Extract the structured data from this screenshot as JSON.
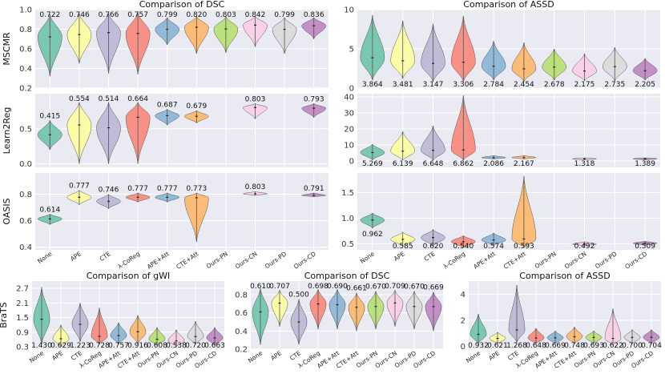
{
  "colors": [
    "#66c2a5",
    "#ffff99",
    "#b7b4d3",
    "#fb8072",
    "#80b1d3",
    "#fdb462",
    "#b3de69",
    "#fccde5",
    "#d9d9d9",
    "#bc80bd"
  ],
  "chart_data": [
    {
      "type": "violin",
      "panel": "top-left-1",
      "title": "Comparison of DSC",
      "ylabel": "MSCMR",
      "ylim": [
        0.2,
        1.0
      ],
      "yticks": [
        0.2,
        0.4,
        0.6,
        0.8,
        1.0
      ],
      "ytick_labels": [
        "0.2",
        "0.4",
        "0.6",
        "0.8",
        "1.0"
      ],
      "categories": [
        "None",
        "APE",
        "CTE",
        "λ-CoReg",
        "APE+Att",
        "CTE+Att",
        "Ours-PN",
        "Ours-CN",
        "Ours-PD",
        "Ours-CD"
      ],
      "show_xticks": false,
      "label_position": "top",
      "values": [
        0.722,
        0.746,
        0.766,
        0.757,
        0.799,
        0.82,
        0.803,
        0.842,
        0.799,
        0.836
      ],
      "labels": [
        "0.722",
        "0.746",
        "0.766",
        "0.757",
        "0.799",
        "0.820",
        "0.803",
        "0.842",
        "0.799",
        "0.836"
      ],
      "ranges": [
        [
          0.32,
          0.95
        ],
        [
          0.45,
          0.96
        ],
        [
          0.35,
          0.96
        ],
        [
          0.34,
          0.97
        ],
        [
          0.64,
          0.92
        ],
        [
          0.55,
          0.93
        ],
        [
          0.56,
          0.93
        ],
        [
          0.62,
          0.93
        ],
        [
          0.55,
          0.92
        ],
        [
          0.7,
          0.92
        ]
      ]
    },
    {
      "type": "violin",
      "panel": "top-left-2",
      "title": "",
      "ylabel": "Learn2Reg",
      "ylim": [
        -0.05,
        1.0
      ],
      "yticks": [
        0.0,
        0.5
      ],
      "ytick_labels": [
        "0.0",
        "0.5"
      ],
      "categories": [
        "None",
        "APE",
        "CTE",
        "λ-CoReg",
        "APE+Att",
        "CTE+Att",
        "Ours-PN",
        "Ours-CN",
        "Ours-PD",
        "Ours-CD"
      ],
      "show_xticks": false,
      "label_position": "top",
      "values": [
        0.415,
        0.554,
        0.514,
        0.664,
        0.687,
        0.679,
        null,
        0.803,
        null,
        0.793
      ],
      "labels": [
        "0.415",
        "0.554",
        "0.514",
        "0.664",
        "0.687",
        "0.679",
        "",
        "0.803",
        "",
        "0.793"
      ],
      "ranges": [
        [
          0.2,
          0.62
        ],
        [
          0.0,
          0.88
        ],
        [
          0.0,
          0.88
        ],
        [
          0.0,
          0.88
        ],
        [
          0.55,
          0.78
        ],
        [
          0.58,
          0.76
        ],
        null,
        [
          0.64,
          0.86
        ],
        null,
        [
          0.66,
          0.86
        ]
      ]
    },
    {
      "type": "violin",
      "panel": "top-left-3",
      "title": "",
      "ylabel": "OASIS",
      "ylim": [
        0.38,
        0.96
      ],
      "yticks": [
        0.4,
        0.6,
        0.8
      ],
      "ytick_labels": [
        "0.4",
        "0.6",
        "0.8"
      ],
      "categories": [
        "None",
        "APE",
        "CTE",
        "λ-CoReg",
        "APE+Att",
        "CTE+Att",
        "Ours-PN",
        "Ours-CN",
        "Ours-PD",
        "Ours-CD"
      ],
      "show_xticks": true,
      "label_position": "top",
      "values": [
        0.614,
        0.777,
        0.746,
        0.777,
        0.777,
        0.773,
        null,
        0.803,
        null,
        0.791
      ],
      "labels": [
        "0.614",
        "0.777",
        "0.746",
        "0.777",
        "0.777",
        "0.773",
        "",
        "0.803",
        "",
        "0.791"
      ],
      "ranges": [
        [
          0.57,
          0.65
        ],
        [
          0.72,
          0.83
        ],
        [
          0.69,
          0.8
        ],
        [
          0.74,
          0.81
        ],
        [
          0.74,
          0.81
        ],
        [
          0.44,
          0.81
        ],
        null,
        [
          0.79,
          0.82
        ],
        null,
        [
          0.78,
          0.81
        ]
      ]
    },
    {
      "type": "violin",
      "panel": "top-right-1",
      "title": "Comparison of ASSD",
      "ylabel": "",
      "ylim": [
        0,
        10
      ],
      "yticks": [
        0,
        5,
        10
      ],
      "ytick_labels": [
        "0",
        "5",
        "10"
      ],
      "categories": [
        "None",
        "APE",
        "CTE",
        "λ-CoReg",
        "APE+Att",
        "CTE+Att",
        "Ours-PN",
        "Ours-CN",
        "Ours-PD",
        "Ours-CD"
      ],
      "show_xticks": false,
      "label_position": "bottom",
      "values": [
        3.864,
        3.481,
        3.147,
        3.306,
        2.784,
        2.454,
        2.678,
        2.175,
        2.735,
        2.205
      ],
      "labels": [
        "3.864",
        "3.481",
        "3.147",
        "3.306",
        "2.784",
        "2.454",
        "2.678",
        "2.175",
        "2.735",
        "2.205"
      ],
      "ranges": [
        [
          1.0,
          9.3
        ],
        [
          1.2,
          8.6
        ],
        [
          0.8,
          8.2
        ],
        [
          0.8,
          9.2
        ],
        [
          1.0,
          6.0
        ],
        [
          0.8,
          5.8
        ],
        [
          1.0,
          5.0
        ],
        [
          0.9,
          4.4
        ],
        [
          0.9,
          5.2
        ],
        [
          1.0,
          3.8
        ]
      ]
    },
    {
      "type": "violin",
      "panel": "top-right-2",
      "title": "",
      "ylabel": "",
      "ylim": [
        -4,
        42
      ],
      "yticks": [
        0,
        10,
        20,
        30,
        40
      ],
      "ytick_labels": [
        "0",
        "10",
        "20",
        "30",
        "40"
      ],
      "categories": [
        "None",
        "APE",
        "CTE",
        "λ-CoReg",
        "APE+Att",
        "CTE+Att",
        "Ours-PN",
        "Ours-CN",
        "Ours-PD",
        "Ours-CD"
      ],
      "show_xticks": false,
      "label_position": "bottom",
      "values": [
        5.269,
        6.139,
        6.648,
        6.862,
        2.086,
        2.167,
        null,
        1.318,
        null,
        1.389
      ],
      "labels": [
        "5.269",
        "6.139",
        "6.648",
        "6.862",
        "2.086",
        "2.167",
        "",
        "1.318",
        "",
        "1.389"
      ],
      "ranges": [
        [
          0.5,
          10.5
        ],
        [
          0.3,
          18.5
        ],
        [
          0.3,
          22.0
        ],
        [
          0.3,
          41.0
        ],
        [
          1.2,
          3.4
        ],
        [
          1.2,
          3.4
        ],
        null,
        [
          0.6,
          2.0
        ],
        null,
        [
          0.6,
          2.0
        ]
      ]
    },
    {
      "type": "violin",
      "panel": "top-right-3",
      "title": "",
      "ylabel": "",
      "ylim": [
        0.38,
        1.88
      ],
      "yticks": [
        0.5,
        1.0,
        1.5
      ],
      "ytick_labels": [
        "0.5",
        "1.0",
        "1.5"
      ],
      "categories": [
        "None",
        "APE",
        "CTE",
        "λ-CoReg",
        "APE+Att",
        "CTE+Att",
        "Ours-PN",
        "Ours-CN",
        "Ours-PD",
        "Ours-CD"
      ],
      "show_xticks": true,
      "label_position": "bottom",
      "values": [
        0.962,
        0.585,
        0.62,
        0.54,
        0.574,
        0.593,
        null,
        0.492,
        null,
        0.509
      ],
      "labels": [
        "0.962",
        "0.585",
        "0.620",
        "0.540",
        "0.574",
        "0.593",
        "",
        "0.492",
        "",
        "0.509"
      ],
      "ranges": [
        [
          0.8,
          1.1
        ],
        [
          0.45,
          0.73
        ],
        [
          0.45,
          0.78
        ],
        [
          0.42,
          0.66
        ],
        [
          0.46,
          0.71
        ],
        [
          0.42,
          1.82
        ],
        null,
        [
          0.46,
          0.54
        ],
        null,
        [
          0.47,
          0.55
        ]
      ]
    },
    {
      "type": "violin",
      "panel": "bottom-1",
      "title": "Comparison of gWI",
      "ylabel": "BraTS",
      "ylim": [
        0.2,
        3.0
      ],
      "yticks": [
        0.3,
        0.9,
        1.5,
        2.1,
        2.7
      ],
      "ytick_labels": [
        "0.3",
        "0.9",
        "1.5",
        "2.1",
        "2.7"
      ],
      "categories": [
        "None",
        "APE",
        "CTE",
        "λ-CoReg",
        "APE+Att",
        "CTE+Att",
        "Ours-PN",
        "Ours-CN",
        "Ours-PD",
        "Ours-CD"
      ],
      "show_xticks": true,
      "label_position": "bottom",
      "values": [
        1.43,
        0.629,
        1.223,
        0.728,
        0.757,
        0.916,
        0.608,
        0.538,
        0.72,
        0.663
      ],
      "labels": [
        "1.430",
        "0.629",
        "1.223",
        "0.728",
        "0.757",
        "0.916",
        "0.608",
        "0.538",
        "0.720",
        "0.663"
      ],
      "ranges": [
        [
          0.4,
          2.75
        ],
        [
          0.3,
          1.2
        ],
        [
          0.5,
          2.1
        ],
        [
          0.4,
          1.9
        ],
        [
          0.4,
          1.3
        ],
        [
          0.4,
          1.6
        ],
        [
          0.35,
          1.1
        ],
        [
          0.3,
          1.0
        ],
        [
          0.4,
          1.35
        ],
        [
          0.35,
          1.1
        ]
      ]
    },
    {
      "type": "violin",
      "panel": "bottom-2",
      "title": "Comparison of DSC",
      "ylabel": "",
      "ylim": [
        0.2,
        0.95
      ],
      "yticks": [
        0.2,
        0.4,
        0.6,
        0.8
      ],
      "ytick_labels": [
        "0.2",
        "0.4",
        "0.6",
        "0.8"
      ],
      "categories": [
        "None",
        "APE",
        "CTE",
        "λ-CoReg",
        "APE+Att",
        "CTE+Att",
        "Ours-PN",
        "Ours-CN",
        "Ours-PD",
        "Ours-CD"
      ],
      "show_xticks": true,
      "label_position": "top",
      "values": [
        0.61,
        0.707,
        0.5,
        0.698,
        0.69,
        0.661,
        0.67,
        0.709,
        0.67,
        0.669
      ],
      "labels": [
        "0.610",
        "0.707",
        "0.500",
        "0.698",
        "0.690",
        "0.661",
        "0.670",
        "0.709",
        "0.670",
        "0.669"
      ],
      "ranges": [
        [
          0.25,
          0.87
        ],
        [
          0.45,
          0.85
        ],
        [
          0.25,
          0.75
        ],
        [
          0.42,
          0.86
        ],
        [
          0.42,
          0.86
        ],
        [
          0.4,
          0.82
        ],
        [
          0.42,
          0.84
        ],
        [
          0.45,
          0.85
        ],
        [
          0.42,
          0.84
        ],
        [
          0.4,
          0.83
        ]
      ]
    },
    {
      "type": "violin",
      "panel": "bottom-3",
      "title": "Comparison of ASSD",
      "ylabel": "",
      "ylim": [
        -0.2,
        5.0
      ],
      "yticks": [
        0,
        2,
        4
      ],
      "ytick_labels": [
        "0",
        "2",
        "4"
      ],
      "categories": [
        "None",
        "APE",
        "CTE",
        "λ-CoReg",
        "APE+Att",
        "CTE+Att",
        "Ours-PN",
        "Ours-CN",
        "Ours-PD",
        "Ours-CD"
      ],
      "show_xticks": true,
      "label_position": "bottom",
      "values": [
        0.932,
        0.621,
        1.268,
        0.648,
        0.669,
        0.748,
        0.693,
        0.622,
        0.7,
        0.704
      ],
      "labels": [
        "0.932",
        "0.621",
        "1.268",
        "0.648",
        "0.669",
        "0.748",
        "0.693",
        "0.622",
        "0.700",
        "0.704"
      ],
      "ranges": [
        [
          0.2,
          2.5
        ],
        [
          0.2,
          1.1
        ],
        [
          0.3,
          4.7
        ],
        [
          0.2,
          1.4
        ],
        [
          0.2,
          1.2
        ],
        [
          0.2,
          1.5
        ],
        [
          0.2,
          1.2
        ],
        [
          0.1,
          2.9
        ],
        [
          0.2,
          1.3
        ],
        [
          0.2,
          1.3
        ]
      ]
    }
  ]
}
